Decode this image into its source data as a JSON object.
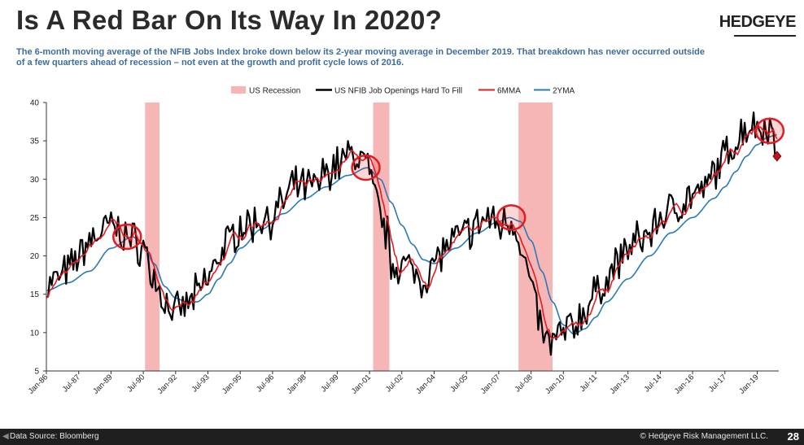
{
  "header": {
    "title": "Is A Red Bar On Its Way In 2020?",
    "logo": "HEDGEYE",
    "subtitle": "The 6-month moving average of the NFIB Jobs Index broke down below its 2-year moving average in December 2019. That breakdown has never occurred outside of a few quarters ahead of recession – not even at the growth and profit cycle lows of 2016."
  },
  "footer": {
    "source": "Data Source: Bloomberg",
    "copyright": "© Hedgeye Risk Management LLC.",
    "page": "28",
    "nav_icon": "chevron-left-icon"
  },
  "colors": {
    "recession": "#f7b6b6",
    "raw": "#000000",
    "ma6": "#e31b23",
    "ma24": "#2a7ab8",
    "circle": "#e31b23",
    "marker": "#c1121f"
  },
  "chart_data": {
    "type": "line",
    "ylim": [
      5,
      40
    ],
    "y_ticks": [
      "5",
      "10",
      "15",
      "20",
      "25",
      "30",
      "35",
      "40"
    ],
    "y_tick_values": [
      5,
      10,
      15,
      20,
      25,
      30,
      35,
      40
    ],
    "xlim": [
      1986.0,
      2020.0
    ],
    "x_ticks": [
      "Jan-86",
      "Jul-87",
      "Jan-89",
      "Jul-90",
      "Jan-92",
      "Jul-93",
      "Jan-95",
      "Jul-96",
      "Jan-98",
      "Jul-99",
      "Jan-01",
      "Jul-02",
      "Jan-04",
      "Jul-05",
      "Jan-07",
      "Jul-08",
      "Jan-10",
      "Jul-11",
      "Jan-13",
      "Jul-14",
      "Jan-16",
      "Jul-17",
      "Jan-19"
    ],
    "x_tick_values": [
      1986.0,
      1987.5,
      1989.0,
      1990.5,
      1992.0,
      1993.5,
      1995.0,
      1996.5,
      1998.0,
      1999.5,
      2001.0,
      2002.5,
      2004.0,
      2005.5,
      2007.0,
      2008.5,
      2010.0,
      2011.5,
      2013.0,
      2014.5,
      2016.0,
      2017.5,
      2019.0
    ],
    "legend": [
      "US Recession",
      "US NFIB Job Openings Hard To Fill",
      "6MMA",
      "2YMA"
    ],
    "recessions": [
      [
        1990.58,
        1991.25
      ],
      [
        2001.17,
        2001.92
      ],
      [
        2007.92,
        2009.5
      ]
    ],
    "raw_anchors": [
      [
        1986.0,
        16
      ],
      [
        1986.5,
        17
      ],
      [
        1987.0,
        18
      ],
      [
        1987.5,
        20
      ],
      [
        1988.0,
        22
      ],
      [
        1988.5,
        23
      ],
      [
        1989.0,
        24
      ],
      [
        1989.5,
        23
      ],
      [
        1990.0,
        22
      ],
      [
        1990.5,
        21
      ],
      [
        1991.0,
        17
      ],
      [
        1991.5,
        14
      ],
      [
        1992.0,
        12.5
      ],
      [
        1992.5,
        13.5
      ],
      [
        1993.0,
        15
      ],
      [
        1993.5,
        17
      ],
      [
        1994.0,
        20
      ],
      [
        1994.5,
        22
      ],
      [
        1995.0,
        24
      ],
      [
        1995.5,
        24
      ],
      [
        1996.0,
        25
      ],
      [
        1996.5,
        25
      ],
      [
        1997.0,
        27
      ],
      [
        1997.5,
        29
      ],
      [
        1998.0,
        29
      ],
      [
        1998.5,
        29
      ],
      [
        1999.0,
        31
      ],
      [
        1999.5,
        32
      ],
      [
        2000.0,
        33
      ],
      [
        2000.5,
        33
      ],
      [
        2000.9,
        32
      ],
      [
        2001.0,
        30
      ],
      [
        2001.3,
        27
      ],
      [
        2001.8,
        23
      ],
      [
        2002.0,
        19
      ],
      [
        2002.5,
        19
      ],
      [
        2003.0,
        18
      ],
      [
        2003.5,
        17
      ],
      [
        2004.0,
        19
      ],
      [
        2004.5,
        21
      ],
      [
        2005.0,
        22
      ],
      [
        2005.5,
        23
      ],
      [
        2006.0,
        24
      ],
      [
        2006.5,
        25
      ],
      [
        2007.0,
        24
      ],
      [
        2007.5,
        25
      ],
      [
        2007.9,
        23
      ],
      [
        2008.3,
        18
      ],
      [
        2008.7,
        14
      ],
      [
        2009.0,
        10
      ],
      [
        2009.3,
        8.5
      ],
      [
        2009.6,
        9
      ],
      [
        2010.0,
        10
      ],
      [
        2010.5,
        11
      ],
      [
        2011.0,
        13
      ],
      [
        2011.5,
        15
      ],
      [
        2012.0,
        17
      ],
      [
        2012.5,
        19
      ],
      [
        2013.0,
        21
      ],
      [
        2013.5,
        22
      ],
      [
        2014.0,
        23
      ],
      [
        2014.5,
        25
      ],
      [
        2015.0,
        26
      ],
      [
        2015.5,
        27
      ],
      [
        2016.0,
        28
      ],
      [
        2016.5,
        28
      ],
      [
        2017.0,
        31
      ],
      [
        2017.5,
        33
      ],
      [
        2018.0,
        35
      ],
      [
        2018.5,
        37
      ],
      [
        2019.0,
        37
      ],
      [
        2019.5,
        37
      ],
      [
        2019.92,
        34
      ]
    ],
    "ma24_anchors": [
      [
        1986.0,
        15.5
      ],
      [
        1987.0,
        16.5
      ],
      [
        1988.0,
        18
      ],
      [
        1989.0,
        21
      ],
      [
        1990.0,
        22.5
      ],
      [
        1990.5,
        21.5
      ],
      [
        1991.0,
        19
      ],
      [
        1991.5,
        16
      ],
      [
        1992.0,
        14.5
      ],
      [
        1992.5,
        14
      ],
      [
        1993.0,
        14
      ],
      [
        1993.5,
        15
      ],
      [
        1994.0,
        17
      ],
      [
        1994.5,
        19
      ],
      [
        1995.0,
        21
      ],
      [
        1996.0,
        23.5
      ],
      [
        1997.0,
        25.5
      ],
      [
        1998.0,
        27.5
      ],
      [
        1999.0,
        29
      ],
      [
        2000.0,
        30.5
      ],
      [
        2000.9,
        31.5
      ],
      [
        2001.5,
        30
      ],
      [
        2002.0,
        27
      ],
      [
        2002.5,
        24
      ],
      [
        2003.0,
        21.5
      ],
      [
        2003.5,
        19.5
      ],
      [
        2004.0,
        19
      ],
      [
        2005.0,
        21
      ],
      [
        2006.0,
        23
      ],
      [
        2007.0,
        24.5
      ],
      [
        2007.5,
        25
      ],
      [
        2008.0,
        24.5
      ],
      [
        2008.5,
        22
      ],
      [
        2009.0,
        18
      ],
      [
        2009.5,
        14
      ],
      [
        2010.0,
        11
      ],
      [
        2010.5,
        9.8
      ],
      [
        2011.0,
        10.5
      ],
      [
        2011.5,
        12
      ],
      [
        2012.0,
        14
      ],
      [
        2013.0,
        17
      ],
      [
        2014.0,
        20
      ],
      [
        2015.0,
        23
      ],
      [
        2016.0,
        25
      ],
      [
        2017.0,
        27.5
      ],
      [
        2017.5,
        29
      ],
      [
        2018.0,
        31
      ],
      [
        2018.5,
        33
      ],
      [
        2019.0,
        34.5
      ],
      [
        2019.5,
        35.5
      ],
      [
        2019.92,
        35.8
      ]
    ],
    "circles": [
      [
        1989.75,
        22.5
      ],
      [
        2000.83,
        31.5
      ],
      [
        2007.58,
        25.0
      ],
      [
        2019.58,
        36.3
      ]
    ],
    "last_point": [
      2019.92,
      33.0
    ]
  }
}
